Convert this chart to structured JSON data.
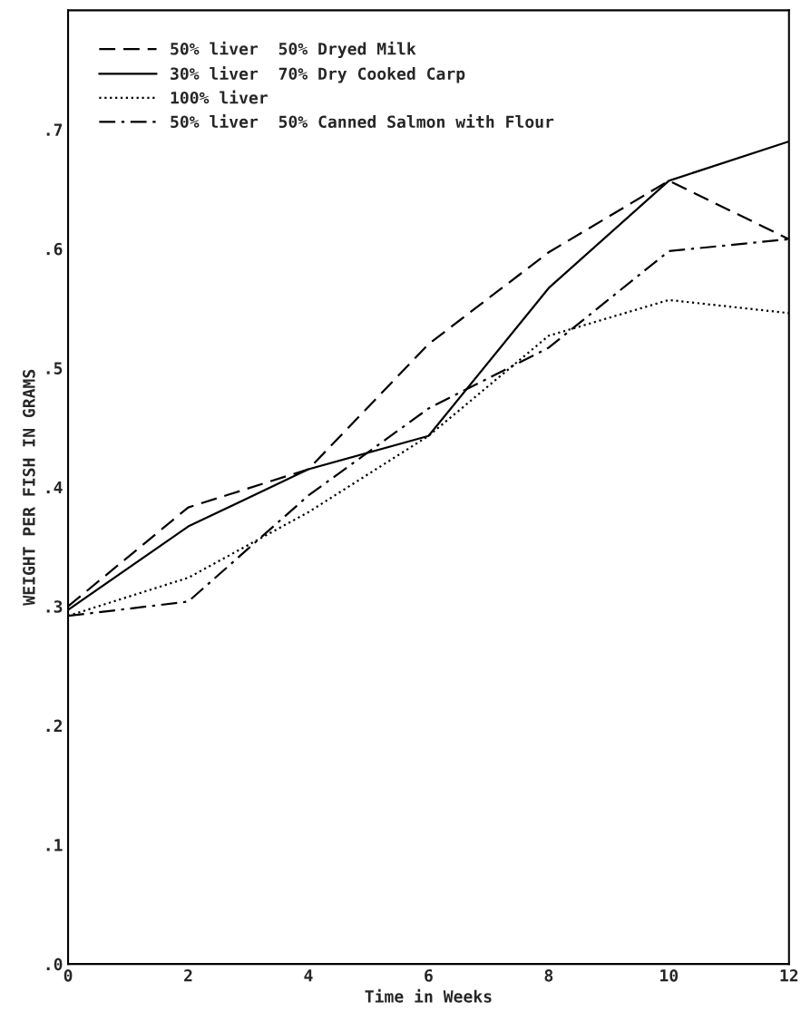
{
  "chart_data": {
    "type": "line",
    "xlabel": "Time in Weeks",
    "ylabel": "WEIGHT PER FISH IN GRAMS",
    "x": [
      0,
      2,
      4,
      6,
      8,
      10,
      12
    ],
    "series": [
      {
        "name": "50% liver  50% Dryed Milk",
        "color": "#000000",
        "line_style": "dashed",
        "values": [
          0.3,
          0.383,
          0.415,
          0.52,
          0.597,
          0.657,
          0.608
        ]
      },
      {
        "name": "30% liver  70% Dry Cooked Carp",
        "color": "#000000",
        "line_style": "solid",
        "values": [
          0.297,
          0.367,
          0.415,
          0.443,
          0.567,
          0.657,
          0.69
        ]
      },
      {
        "name": "100% liver",
        "color": "#000000",
        "line_style": "dotted",
        "values": [
          0.292,
          0.324,
          0.379,
          0.443,
          0.527,
          0.557,
          0.546
        ]
      },
      {
        "name": "50% liver  50% Canned Salmon with Flour",
        "color": "#000000",
        "line_style": "dashdot",
        "values": [
          0.292,
          0.304,
          0.393,
          0.466,
          0.517,
          0.598,
          0.608
        ]
      }
    ],
    "xlim": [
      0,
      12
    ],
    "xticks": [
      {
        "value": 0,
        "label": "0"
      },
      2,
      4,
      6,
      8,
      10,
      12
    ],
    "ylim": [
      0,
      0.8
    ],
    "yticks": [
      {
        "value": 0,
        "label": ".0"
      },
      {
        "value": 0.1,
        "label": ".1"
      },
      {
        "value": 0.2,
        "label": ".2"
      },
      {
        "value": 0.3,
        "label": ".3"
      },
      {
        "value": 0.4,
        "label": ".4"
      },
      {
        "value": 0.5,
        "label": ".5"
      },
      {
        "value": 0.6,
        "label": ".6"
      },
      {
        "value": 0.7,
        "label": ".7"
      }
    ],
    "legend": "top left",
    "grid": false,
    "marker": "none"
  }
}
